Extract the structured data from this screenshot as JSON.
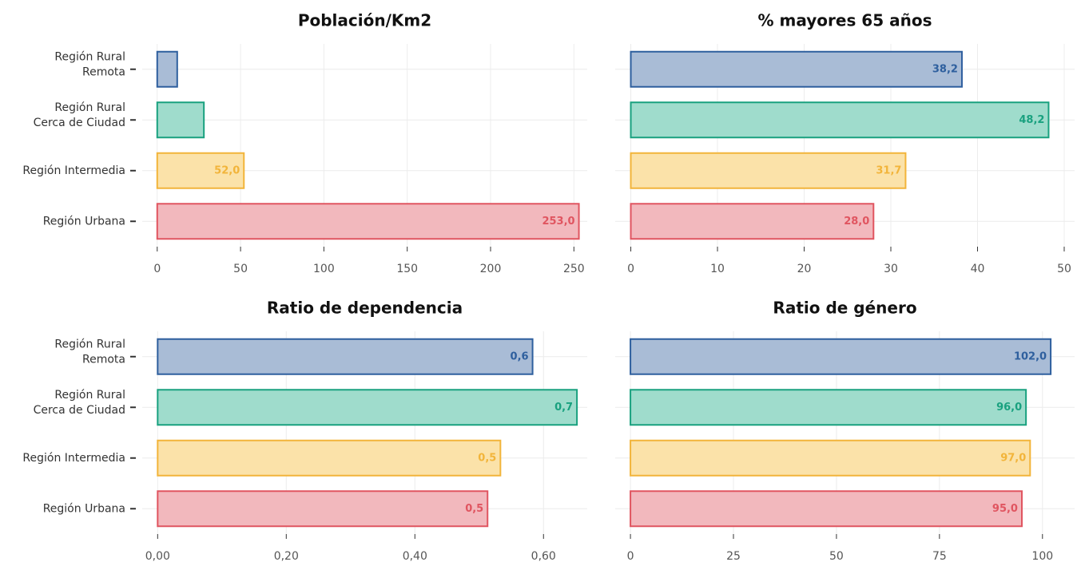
{
  "chart_data": [
    {
      "type": "bar",
      "orientation": "horizontal",
      "title": "Población/Km2",
      "categories": [
        "Región Rural\nRemota",
        "Región Rural\nCerca de Ciudad",
        "Región Intermedia",
        "Región Urbana"
      ],
      "values": [
        12,
        28,
        52,
        253
      ],
      "value_labels": [
        null,
        null,
        "52,0",
        "253,0"
      ],
      "colors": [
        "#2e5f9e",
        "#19a17f",
        "#f2b43a",
        "#e05560"
      ],
      "fills": [
        "#a9bcd6",
        "#9fdccc",
        "#fbe2a9",
        "#f2b8bd"
      ],
      "xlim": [
        -9,
        258
      ],
      "xticks": [
        0,
        50,
        100,
        150,
        200,
        250
      ],
      "grid": true
    },
    {
      "type": "bar",
      "orientation": "horizontal",
      "title": "% mayores 65 años",
      "values": [
        38.2,
        48.2,
        31.7,
        28.0
      ],
      "value_labels": [
        "38,2",
        "48,2",
        "31,7",
        "28,0"
      ],
      "colors": [
        "#2e5f9e",
        "#19a17f",
        "#f2b43a",
        "#e05560"
      ],
      "fills": [
        "#a9bcd6",
        "#9fdccc",
        "#fbe2a9",
        "#f2b8bd"
      ],
      "xlim": [
        -1.8,
        51.2
      ],
      "xticks": [
        0,
        10,
        20,
        30,
        40,
        50
      ],
      "grid": true
    },
    {
      "type": "bar",
      "orientation": "horizontal",
      "title": "Ratio de dependencia",
      "categories": [
        "Región Rural\nRemota",
        "Región Rural\nCerca de Ciudad",
        "Región Intermedia",
        "Región Urbana"
      ],
      "values": [
        0.583,
        0.652,
        0.533,
        0.513
      ],
      "value_labels": [
        "0,6",
        "0,7",
        "0,5",
        "0,5"
      ],
      "colors": [
        "#2e5f9e",
        "#19a17f",
        "#f2b43a",
        "#e05560"
      ],
      "fills": [
        "#a9bcd6",
        "#9fdccc",
        "#fbe2a9",
        "#f2b8bd"
      ],
      "xlim": [
        -0.024,
        0.668
      ],
      "xticks": [
        {
          "value": 0,
          "label": "0,00"
        },
        {
          "value": 0.2,
          "label": "0,20"
        },
        {
          "value": 0.4,
          "label": "0,40"
        },
        {
          "value": 0.6,
          "label": "0,60"
        }
      ],
      "grid": true
    },
    {
      "type": "bar",
      "orientation": "horizontal",
      "title": "Ratio de género",
      "values": [
        102,
        96,
        97,
        95
      ],
      "value_labels": [
        "102,0",
        "96,0",
        "97,0",
        "95,0"
      ],
      "colors": [
        "#2e5f9e",
        "#19a17f",
        "#f2b43a",
        "#e05560"
      ],
      "fills": [
        "#a9bcd6",
        "#9fdccc",
        "#fbe2a9",
        "#f2b8bd"
      ],
      "xlim": [
        -3.7,
        107.8
      ],
      "xticks": [
        0,
        25,
        50,
        75,
        100
      ],
      "grid": true
    }
  ]
}
